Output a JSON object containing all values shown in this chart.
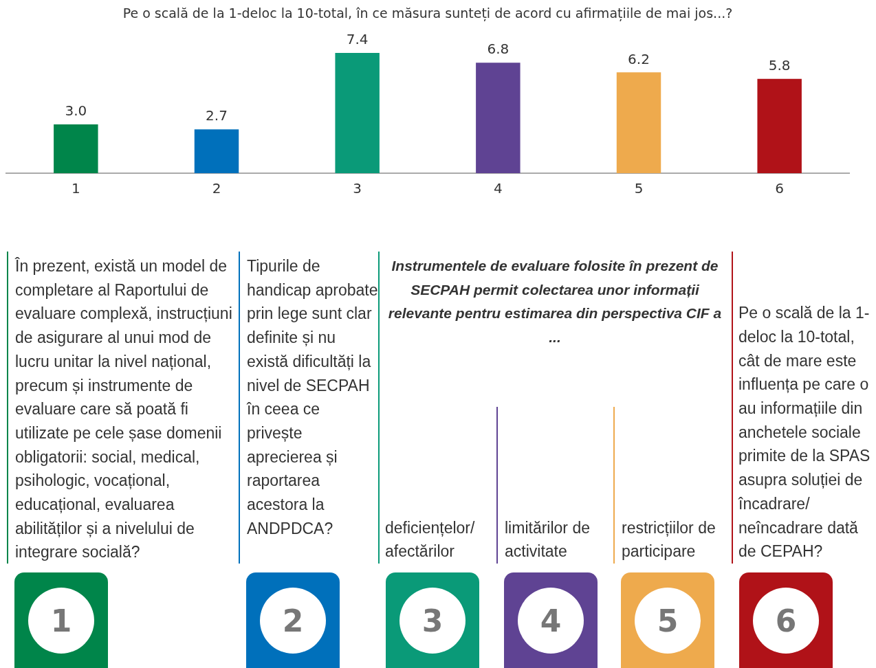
{
  "chart_data": {
    "type": "bar",
    "title": "Pe o scală de la 1-deloc la 10-total, în ce măsura sunteți de acord cu afirmațiile de mai jos...?",
    "categories": [
      "1",
      "2",
      "3",
      "4",
      "5",
      "6"
    ],
    "values": [
      3.0,
      2.7,
      7.4,
      6.8,
      6.2,
      5.8
    ],
    "value_labels": [
      "3.0",
      "2.7",
      "7.4",
      "6.8",
      "6.2",
      "5.8"
    ],
    "colors": [
      "#00854a",
      "#0070bb",
      "#0a9a78",
      "#5f4393",
      "#eeaa4d",
      "#b01218"
    ],
    "grid": false,
    "legend": false,
    "annotations": [
      "În prezent, există un model de completare al Raportului de evaluare complexă, instrucțiuni de asigurare al unui mod de lucru unitar la nivel național, precum și instrumente de evaluare care să poată fi utilizate pe cele șase domenii obligatorii: social, medical, psihologic, vocațional, educațional, evaluarea abilităților și a nivelului de integrare socială?",
      "Tipurile de handicap aprobate prin lege sunt clar definite și nu există dificultăți la nivel de SECPAH în ceea ce privește aprecierea și raportarea acestora la ANDPDCA?",
      "Instrumentele de evaluare folosite în prezent de SECPAH permit colectarea unor informații relevante pentru estimarea din perspectiva CIF a ...",
      "deficiențelor/ afectărilor",
      "limitărilor de activitate",
      "restricțiilor de participare",
      "Pe o scală de la 1-deloc la 10-total, cât de mare este influența pe care o au informațiile din anchetele sociale primite de la SPAS asupra soluției de încadrare/ neîncadrare dată de CEPAH?"
    ]
  }
}
